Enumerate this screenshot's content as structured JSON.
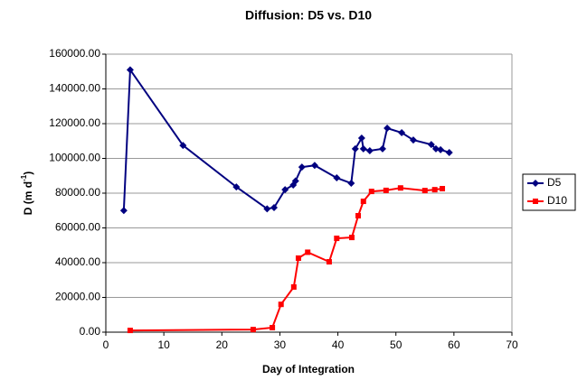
{
  "chart_data": {
    "type": "line",
    "title": "Diffusion: D5 vs. D10",
    "x_label": "Day of Integration",
    "y_label": "D (m d",
    "y_label_sup": "-1",
    "y_label_end": ")",
    "xlim": [
      0,
      70
    ],
    "xticks": [
      0,
      10,
      20,
      30,
      40,
      50,
      60,
      70
    ],
    "ylim": [
      0,
      160000
    ],
    "yticks": [
      {
        "value": 0,
        "label": "0.00"
      },
      {
        "value": 20000,
        "label": "20000.00"
      },
      {
        "value": 40000,
        "label": "40000.00"
      },
      {
        "value": 60000,
        "label": "60000.00"
      },
      {
        "value": 80000,
        "label": "80000.00"
      },
      {
        "value": 100000,
        "label": "100000.00"
      },
      {
        "value": 120000,
        "label": "120000.00"
      },
      {
        "value": 140000,
        "label": "140000.00"
      },
      {
        "value": 160000,
        "label": "160000.00"
      }
    ],
    "grid": true,
    "legend": "right",
    "series": [
      {
        "name": "D5",
        "color": "#000080",
        "marker": "diamond",
        "x": [
          3.1,
          4.2,
          13.3,
          22.5,
          27.8,
          29,
          30.9,
          32.3,
          32.7,
          33.8,
          36,
          39.8,
          42.3,
          43,
          44.1,
          44.4,
          45.5,
          47.7,
          48.5,
          51,
          53,
          56.1,
          56.9,
          57.7,
          59.2
        ],
        "values": [
          70000,
          151000,
          107500,
          83600,
          71000,
          71700,
          82000,
          84700,
          87000,
          95000,
          96000,
          88800,
          85700,
          105500,
          111700,
          105500,
          104400,
          105500,
          117400,
          114800,
          110600,
          108000,
          105500,
          105000,
          103400
        ]
      },
      {
        "name": "D10",
        "color": "#ff0000",
        "marker": "square",
        "x": [
          4.2,
          25.4,
          28.7,
          30.2,
          32.4,
          33.2,
          34.8,
          38.5,
          39.8,
          42.4,
          43.5,
          44.4,
          45.8,
          48.3,
          50.8,
          55,
          56.7,
          58
        ],
        "values": [
          1000,
          1500,
          2600,
          16000,
          26000,
          42600,
          46000,
          40500,
          54000,
          54500,
          67000,
          75300,
          81000,
          81600,
          83000,
          81500,
          82000,
          82600
        ]
      }
    ]
  }
}
